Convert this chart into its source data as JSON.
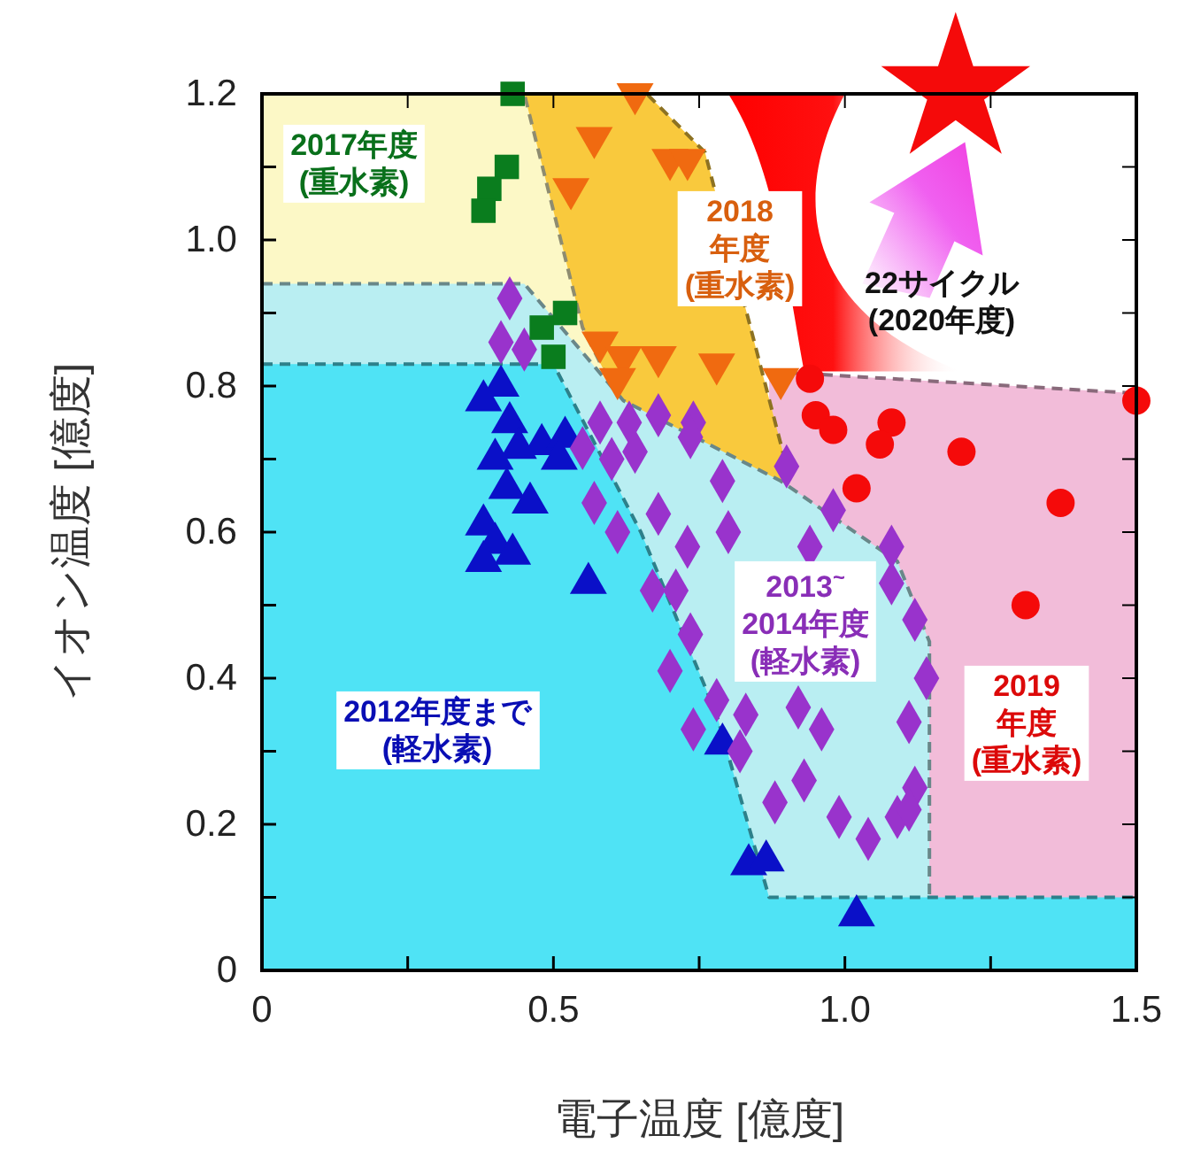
{
  "chart_data": {
    "type": "scatter",
    "xlabel": "電子温度 [億度]",
    "ylabel": "イオン温度 [億度]",
    "xlim": [
      0,
      1.5
    ],
    "ylim": [
      0,
      1.2
    ],
    "xticks": [
      0,
      {
        "value": 0.25,
        "label": null
      },
      0.5,
      {
        "value": 0.75,
        "label": null
      },
      {
        "value": 1,
        "label": "1.0"
      },
      {
        "value": 1.25,
        "label": null
      },
      1.5
    ],
    "yticks": [
      0,
      {
        "value": 0.1,
        "label": null
      },
      0.2,
      {
        "value": 0.3,
        "label": null
      },
      0.4,
      {
        "value": 0.5,
        "label": null
      },
      0.6,
      {
        "value": 0.7,
        "label": null
      },
      0.8,
      {
        "value": 0.9,
        "label": null
      },
      {
        "value": 1,
        "label": "1.0"
      },
      {
        "value": 1.1,
        "label": null
      },
      1.2
    ],
    "series": [
      {
        "type": "area",
        "color": "#f2bcd9",
        "line_style": "dashed",
        "x": [
          0.87,
          1.5
        ],
        "values": [
          0.82,
          0.79
        ]
      },
      {
        "type": "area",
        "color": "#f9c93d",
        "line_style": "dashed",
        "x": [
          0.45,
          0.66,
          0.76,
          0.9
        ],
        "values": [
          1.2,
          1.2,
          1.12,
          0.69
        ]
      },
      {
        "type": "area",
        "color": "#fcf8c6",
        "line_style": "dashed",
        "x": [
          0,
          0.45,
          0.55,
          0.6
        ],
        "values": [
          1.2,
          1.2,
          0.88,
          0.8
        ]
      },
      {
        "type": "area",
        "color": "#b9eef2",
        "line_style": "dashed",
        "x": [
          0,
          0.45,
          0.62,
          0.89,
          1.09,
          1.145,
          1.145
        ],
        "values": [
          0.94,
          0.94,
          0.78,
          0.67,
          0.56,
          0.45,
          0.1
        ]
      },
      {
        "type": "area",
        "color": "#4fe3f5",
        "line_style": "dashed",
        "x": [
          0,
          0.5,
          0.65,
          0.78,
          0.87,
          1.5
        ],
        "values": [
          0.83,
          0.83,
          0.6,
          0.35,
          0.1,
          0.1
        ]
      },
      {
        "type": "scatter",
        "marker": "triangle",
        "color": "#0a10c8",
        "x": [
          0.41,
          0.38,
          0.425,
          0.48,
          0.52,
          0.4,
          0.44,
          0.51,
          0.42,
          0.46,
          0.38,
          0.4,
          0.43,
          0.38,
          0.56,
          0.79,
          0.835,
          0.865,
          1.02
        ],
        "values": [
          0.8,
          0.78,
          0.75,
          0.72,
          0.73,
          0.7,
          0.715,
          0.7,
          0.66,
          0.64,
          0.61,
          0.585,
          0.57,
          0.56,
          0.53,
          0.31,
          0.145,
          0.15,
          0.075
        ]
      },
      {
        "type": "scatter",
        "marker": "diamond",
        "color": "#9933cc",
        "x": [
          0.425,
          0.41,
          0.45,
          0.58,
          0.63,
          0.68,
          0.64,
          0.6,
          0.74,
          0.735,
          0.9,
          0.79,
          0.98,
          0.8,
          0.73,
          1.08,
          0.94,
          1.08,
          1.12,
          0.71,
          0.735,
          1.14,
          0.83,
          0.92,
          0.96,
          1.11,
          0.82,
          0.93,
          0.88,
          1.12,
          0.99,
          1.04,
          1.09,
          1.11,
          0.55,
          0.57,
          0.68,
          0.61,
          0.67,
          0.7,
          0.78,
          0.74
        ],
        "values": [
          0.92,
          0.86,
          0.85,
          0.75,
          0.75,
          0.76,
          0.71,
          0.7,
          0.75,
          0.73,
          0.69,
          0.67,
          0.63,
          0.6,
          0.58,
          0.58,
          0.58,
          0.53,
          0.48,
          0.52,
          0.46,
          0.4,
          0.35,
          0.36,
          0.33,
          0.34,
          0.3,
          0.26,
          0.23,
          0.25,
          0.21,
          0.18,
          0.21,
          0.22,
          0.715,
          0.64,
          0.625,
          0.6,
          0.52,
          0.41,
          0.37,
          0.33
        ]
      },
      {
        "type": "scatter",
        "marker": "square",
        "color": "#0a7d1e",
        "x": [
          0.43,
          0.42,
          0.39,
          0.38,
          0.52,
          0.48,
          0.5
        ],
        "values": [
          1.2,
          1.1,
          1.07,
          1.04,
          0.9,
          0.88,
          0.84
        ]
      },
      {
        "type": "scatter",
        "marker": "triangle-down",
        "color": "#f06a10",
        "x": [
          0.64,
          0.57,
          0.7,
          0.73,
          0.53,
          0.58,
          0.62,
          0.68,
          0.61,
          0.78,
          0.89
        ],
        "values": [
          1.2,
          1.14,
          1.11,
          1.11,
          1.07,
          0.86,
          0.84,
          0.84,
          0.81,
          0.83,
          0.81
        ]
      },
      {
        "type": "scatter",
        "marker": "circle",
        "color": "#f50a0a",
        "x": [
          0.94,
          0.95,
          0.98,
          1.08,
          1.06,
          1.2,
          1.5,
          1.02,
          1.37,
          1.31
        ],
        "values": [
          0.81,
          0.76,
          0.74,
          0.75,
          0.72,
          0.71,
          0.78,
          0.66,
          0.64,
          0.5
        ]
      }
    ],
    "annotations": [
      "2012年度まで\n(軽水素)",
      "2013$^{~}$\n2014年度\n(軽水素)",
      "2017年度\n(重水素)",
      "2018\n年度\n(重水素)",
      "2019\n年度\n(重水素)",
      "22サイクル\n(2020年度)"
    ]
  }
}
